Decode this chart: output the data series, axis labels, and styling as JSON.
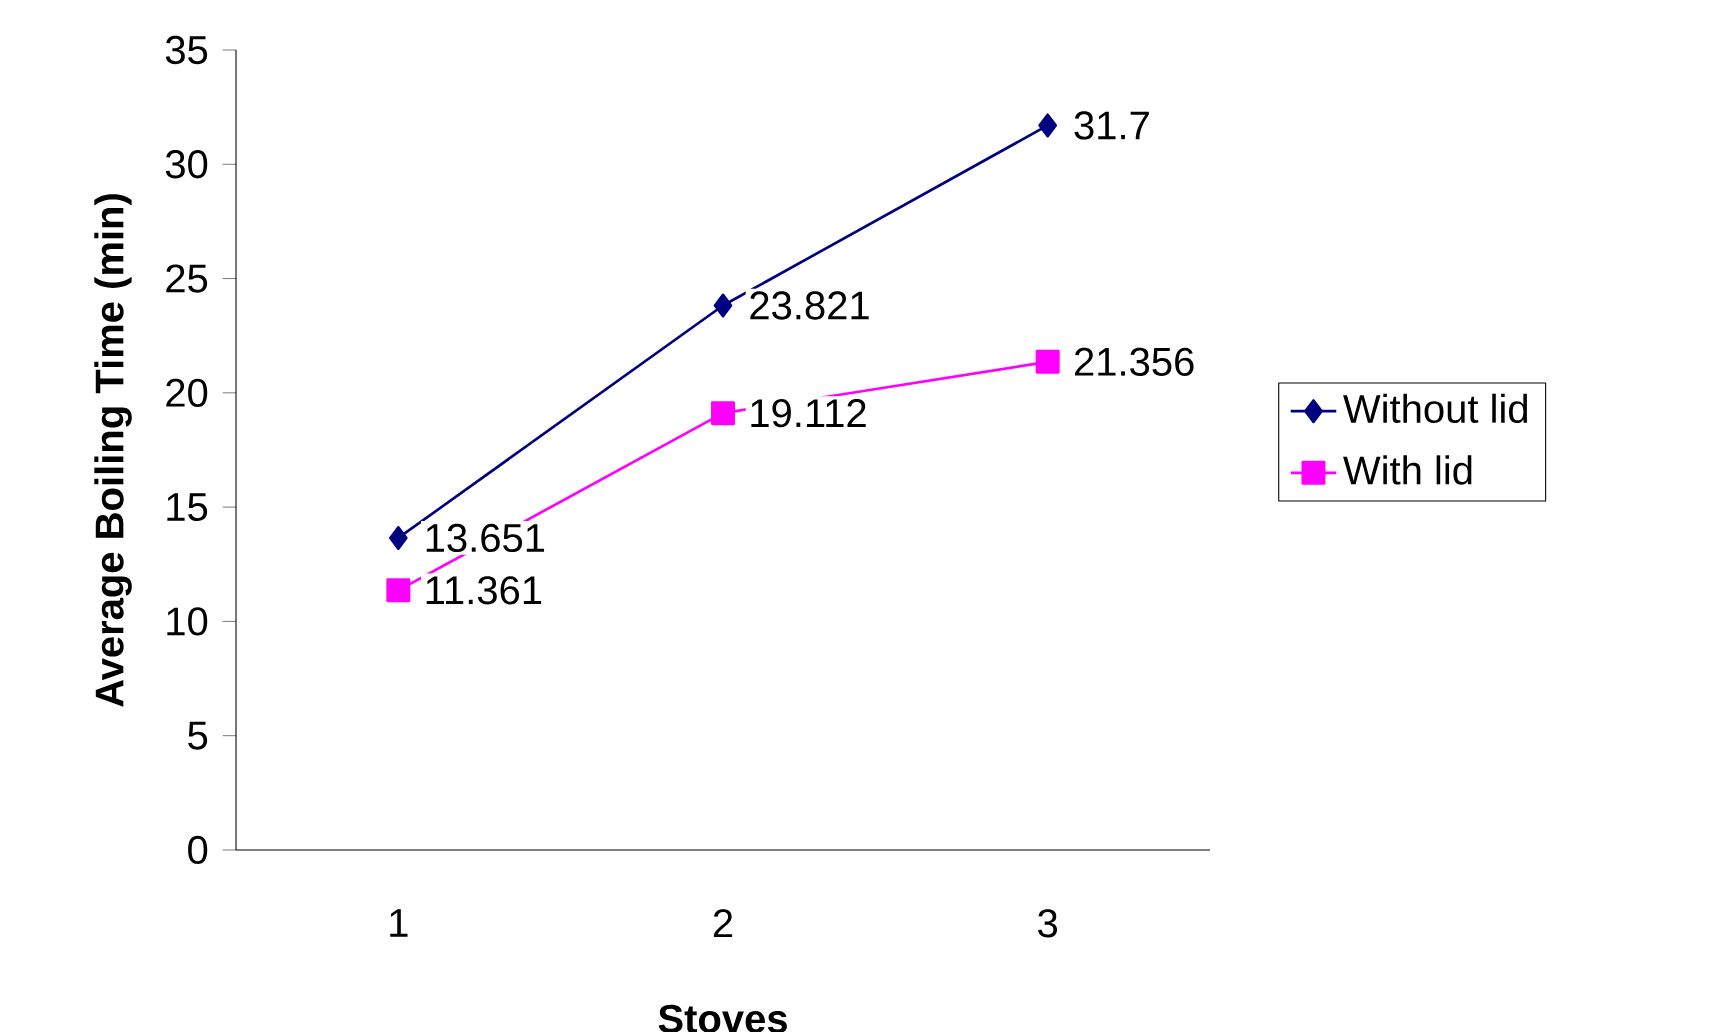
{
  "chart_data": {
    "type": "line",
    "xlabel": "Stoves",
    "ylabel": "Average Boiling Time (min)",
    "categories": [
      "1",
      "2",
      "3"
    ],
    "series": [
      {
        "name": "Without lid",
        "color": "#000080",
        "marker": "diamond",
        "values": [
          13.651,
          23.821,
          31.7
        ]
      },
      {
        "name": "With lid",
        "color": "#ff00ff",
        "marker": "square",
        "values": [
          11.361,
          19.112,
          21.356
        ]
      }
    ],
    "ylim": [
      0,
      35
    ],
    "yticks": [
      0,
      5,
      10,
      15,
      20,
      25,
      30,
      35
    ],
    "data_labels": true,
    "grid": false,
    "legend": "right"
  }
}
